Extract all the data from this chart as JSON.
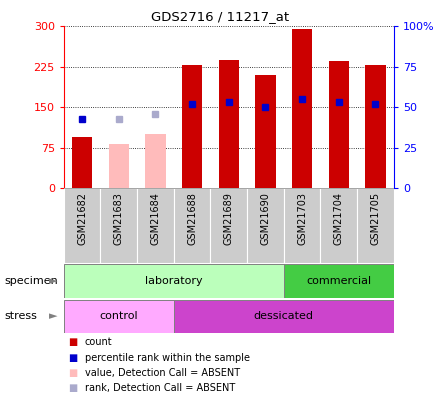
{
  "title": "GDS2716 / 11217_at",
  "samples": [
    "GSM21682",
    "GSM21683",
    "GSM21684",
    "GSM21688",
    "GSM21689",
    "GSM21690",
    "GSM21703",
    "GSM21704",
    "GSM21705"
  ],
  "count_values": [
    95,
    null,
    null,
    228,
    237,
    210,
    295,
    235,
    228
  ],
  "count_absent": [
    null,
    83,
    100,
    null,
    null,
    null,
    null,
    null,
    null
  ],
  "rank_values": [
    43,
    null,
    null,
    52,
    53,
    50,
    55,
    53,
    52
  ],
  "rank_absent": [
    null,
    43,
    46,
    null,
    null,
    null,
    null,
    null,
    null
  ],
  "ylim_left": [
    0,
    300
  ],
  "ylim_right": [
    0,
    100
  ],
  "yticks_left": [
    0,
    75,
    150,
    225,
    300
  ],
  "yticks_right": [
    0,
    25,
    50,
    75,
    100
  ],
  "ytick_labels_left": [
    "0",
    "75",
    "150",
    "225",
    "300"
  ],
  "ytick_labels_right": [
    "0",
    "25",
    "50",
    "75",
    "100%"
  ],
  "bar_color": "#cc0000",
  "bar_absent_color": "#ffbbbb",
  "rank_color": "#0000cc",
  "rank_absent_color": "#aaaacc",
  "specimen_groups": [
    {
      "label": "laboratory",
      "start": 0,
      "end": 6,
      "color": "#bbffbb"
    },
    {
      "label": "commercial",
      "start": 6,
      "end": 9,
      "color": "#44cc44"
    }
  ],
  "stress_groups": [
    {
      "label": "control",
      "start": 0,
      "end": 3,
      "color": "#ffaaff"
    },
    {
      "label": "dessicated",
      "start": 3,
      "end": 9,
      "color": "#cc44cc"
    }
  ],
  "specimen_label": "specimen",
  "stress_label": "stress",
  "legend_items": [
    {
      "color": "#cc0000",
      "label": "count"
    },
    {
      "color": "#0000cc",
      "label": "percentile rank within the sample"
    },
    {
      "color": "#ffbbbb",
      "label": "value, Detection Call = ABSENT"
    },
    {
      "color": "#aaaacc",
      "label": "rank, Detection Call = ABSENT"
    }
  ],
  "bg_color": "#ffffff",
  "bar_width": 0.55,
  "xtick_bg": "#cccccc"
}
